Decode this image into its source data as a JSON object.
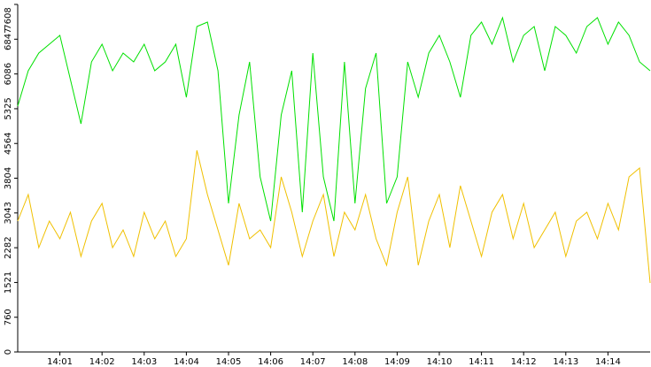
{
  "chart_data": {
    "type": "line",
    "x": [
      0,
      0.25,
      0.5,
      0.75,
      1,
      1.25,
      1.5,
      1.75,
      2,
      2.25,
      2.5,
      2.75,
      3,
      3.25,
      3.5,
      3.75,
      4,
      4.25,
      4.5,
      4.75,
      5,
      5.25,
      5.5,
      5.75,
      6,
      6.25,
      6.5,
      6.75,
      7,
      7.25,
      7.5,
      7.75,
      8,
      8.25,
      8.5,
      8.75,
      9,
      9.25,
      9.5,
      9.75,
      10,
      10.25,
      10.5,
      10.75,
      11,
      11.25,
      11.5,
      11.75,
      12,
      12.25,
      12.5,
      12.75,
      13,
      13.25,
      13.5,
      13.75,
      14,
      14.25,
      14.5,
      14.75,
      15
    ],
    "series": [
      {
        "color": "#00e000",
        "values": [
          5382,
          6156,
          6544,
          6737,
          6931,
          5963,
          4995,
          6350,
          6737,
          6156,
          6544,
          6350,
          6737,
          6156,
          6350,
          6737,
          5576,
          7124,
          7221,
          6156,
          3252,
          5188,
          6350,
          3833,
          2865,
          5188,
          6156,
          3059,
          6544,
          3833,
          2865,
          6350,
          3252,
          5769,
          6544,
          3252,
          3833,
          6350,
          5576,
          6544,
          6931,
          6350,
          5576,
          6931,
          7221,
          6737,
          7318,
          6350,
          6931,
          7124,
          6156,
          7124,
          6931,
          6544,
          7124,
          7318,
          6737,
          7221,
          6931,
          6350,
          6156
        ]
      },
      {
        "color": "#f0c000",
        "values": [
          2865,
          3446,
          2284,
          2865,
          2478,
          3059,
          2091,
          2865,
          3252,
          2284,
          2672,
          2091,
          3059,
          2478,
          2865,
          2091,
          2478,
          4414,
          3446,
          2672,
          1897,
          3252,
          2478,
          2672,
          2284,
          3833,
          3059,
          2091,
          2865,
          3446,
          2091,
          3059,
          2672,
          3446,
          2478,
          1897,
          3059,
          3833,
          1897,
          2865,
          3446,
          2284,
          3640,
          2865,
          2091,
          3059,
          3446,
          2478,
          3252,
          2284,
          2672,
          3059,
          2091,
          2865,
          3059,
          2478,
          3252,
          2672,
          3833,
          4027,
          1510
        ]
      }
    ],
    "xlim": [
      0,
      15
    ],
    "ylim": [
      0,
      7608
    ],
    "xticks": [
      {
        "value": 1,
        "label": "14:01"
      },
      {
        "value": 2,
        "label": "14:02"
      },
      {
        "value": 3,
        "label": "14:03"
      },
      {
        "value": 4,
        "label": "14:04"
      },
      {
        "value": 5,
        "label": "14:05"
      },
      {
        "value": 6,
        "label": "14:06"
      },
      {
        "value": 7,
        "label": "14:07"
      },
      {
        "value": 8,
        "label": "14:08"
      },
      {
        "value": 9,
        "label": "14:09"
      },
      {
        "value": 10,
        "label": "14:10"
      },
      {
        "value": 11,
        "label": "14:11"
      },
      {
        "value": 12,
        "label": "14:12"
      },
      {
        "value": 13,
        "label": "14:13"
      },
      {
        "value": 14,
        "label": "14:14"
      }
    ],
    "yticks": [
      0,
      760,
      1521,
      2282,
      3043,
      3804,
      4564,
      5325,
      6086,
      6847,
      7608
    ]
  }
}
